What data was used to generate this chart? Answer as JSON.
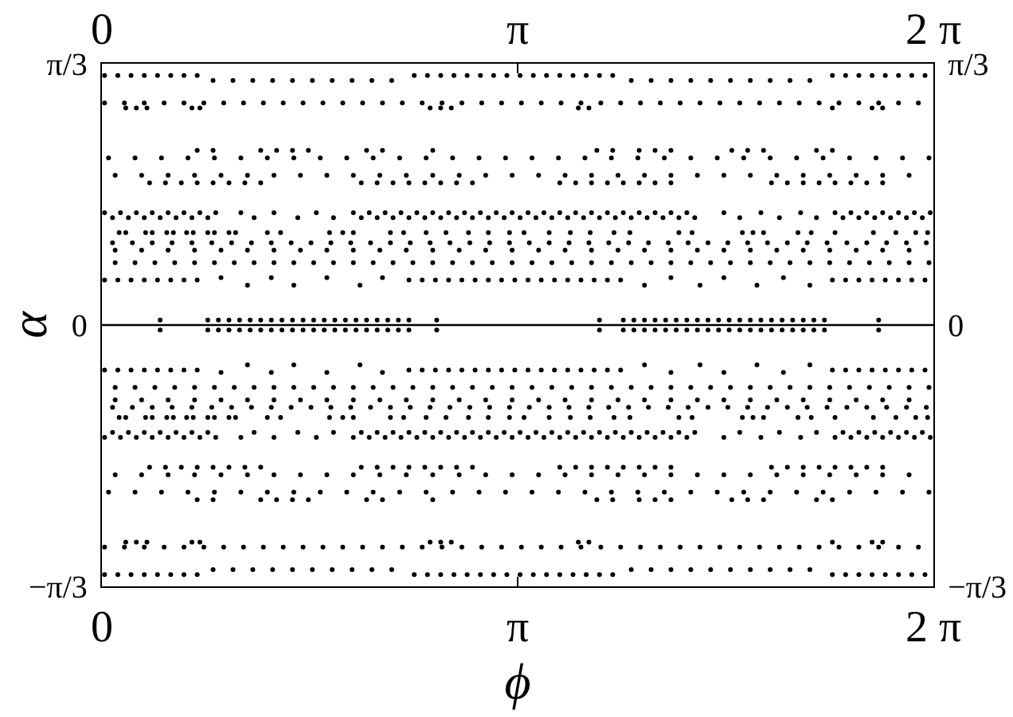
{
  "chart_data": {
    "type": "scatter",
    "xlabel": "ϕ",
    "ylabel": "α",
    "marker": "circle",
    "xlim": [
      0,
      6.2832
    ],
    "xticks": [
      0,
      {
        "value": 3.1416,
        "label": "π"
      },
      {
        "value": 6.2832,
        "label": "2 π"
      }
    ],
    "x2lim": [
      0,
      6.2832
    ],
    "x2ticks": [
      0,
      {
        "value": 3.1416,
        "label": "π"
      },
      {
        "value": 6.2832,
        "label": "2 π"
      }
    ],
    "ylim": [
      -1.0472,
      1.0472
    ],
    "yticks": [
      {
        "value": -1.0472,
        "label": "−π/3"
      },
      0,
      {
        "value": 1.0472,
        "label": "π/3"
      }
    ],
    "y2lim": [
      -1.0472,
      1.0472
    ],
    "y2ticks": [
      {
        "value": -1.0472,
        "label": "−π/3"
      },
      0,
      {
        "value": 1.0472,
        "label": "π/3"
      }
    ],
    "ref_lines": [
      {
        "axis": "y",
        "value": 0,
        "color": "#000000"
      }
    ],
    "series": [
      {
        "color": "#000000",
        "x": [
          0.02,
          0.12,
          0.22,
          0.32,
          0.42,
          0.52,
          0.62,
          0.72,
          2.36,
          2.46,
          2.56,
          2.66,
          2.76,
          2.86,
          2.96,
          3.06,
          3.16,
          3.26,
          3.36,
          3.46,
          3.56,
          3.66,
          3.76,
          3.86,
          5.52,
          5.62,
          5.72,
          5.82,
          5.92,
          6.02,
          6.12,
          6.22,
          0.84,
          0.99,
          1.14,
          1.29,
          1.44,
          1.59,
          1.74,
          1.89,
          2.04,
          2.19,
          4.0,
          4.15,
          4.3,
          4.45,
          4.6,
          4.75,
          4.9,
          5.05,
          5.2,
          5.35,
          0.02,
          0.12,
          0.22,
          0.32,
          0.42,
          0.52,
          0.62,
          0.72,
          2.36,
          2.46,
          2.56,
          2.66,
          2.76,
          2.86,
          2.96,
          3.06,
          3.16,
          3.26,
          3.36,
          3.46,
          3.56,
          3.66,
          3.76,
          3.86,
          5.52,
          5.62,
          5.72,
          5.82,
          5.92,
          6.02,
          6.12,
          6.22,
          0.84,
          0.99,
          1.14,
          1.29,
          1.44,
          1.59,
          1.74,
          1.89,
          2.04,
          2.19,
          4.0,
          4.15,
          4.3,
          4.45,
          4.6,
          4.75,
          4.9,
          5.05,
          5.2,
          5.35
        ],
        "values": [
          1,
          1,
          1,
          1,
          1,
          1,
          1,
          1,
          1,
          1,
          1,
          1,
          1,
          1,
          1,
          1,
          1,
          1,
          1,
          1,
          1,
          1,
          1,
          1,
          1,
          1,
          1,
          1,
          1,
          1,
          1,
          1,
          0.98,
          0.98,
          0.98,
          0.98,
          0.98,
          0.98,
          0.98,
          0.98,
          0.98,
          0.98,
          0.98,
          0.98,
          0.98,
          0.98,
          0.98,
          0.98,
          0.98,
          0.98,
          0.98,
          0.98,
          -1,
          -1,
          -1,
          -1,
          -1,
          -1,
          -1,
          -1,
          -1,
          -1,
          -1,
          -1,
          -1,
          -1,
          -1,
          -1,
          -1,
          -1,
          -1,
          -1,
          -1,
          -1,
          -1,
          -1,
          -1,
          -1,
          -1,
          -1,
          -1,
          -1,
          -1,
          -1,
          -0.98,
          -0.98,
          -0.98,
          -0.98,
          -0.98,
          -0.98,
          -0.98,
          -0.98,
          -0.98,
          -0.98,
          -0.98,
          -0.98,
          -0.98,
          -0.98,
          -0.98,
          -0.98,
          -0.98,
          -0.98,
          -0.98,
          -0.98
        ]
      },
      {
        "color": "#000000",
        "x": [
          0.02,
          0.17,
          0.32,
          0.47,
          0.62,
          0.77,
          0.92,
          1.07,
          1.22,
          1.37,
          1.52,
          1.67,
          1.82,
          1.97,
          2.12,
          2.27,
          2.42,
          2.57,
          2.72,
          2.87,
          3.02,
          3.17,
          3.32,
          3.47,
          3.62,
          3.77,
          3.92,
          4.07,
          4.22,
          4.37,
          4.52,
          4.67,
          4.82,
          4.97,
          5.12,
          5.27,
          5.42,
          5.57,
          5.72,
          5.87,
          6.02,
          6.17,
          0.18,
          0.26,
          0.34,
          0.68,
          0.74,
          2.48,
          2.56,
          2.64,
          3.6,
          3.68,
          5.52,
          5.82,
          5.9,
          0.02,
          0.17,
          0.32,
          0.47,
          0.62,
          0.77,
          0.92,
          1.07,
          1.22,
          1.37,
          1.52,
          1.67,
          1.82,
          1.97,
          2.12,
          2.27,
          2.42,
          2.57,
          2.72,
          2.87,
          3.02,
          3.17,
          3.32,
          3.47,
          3.62,
          3.77,
          3.92,
          4.07,
          4.22,
          4.37,
          4.52,
          4.67,
          4.82,
          4.97,
          5.12,
          5.27,
          5.42,
          5.57,
          5.72,
          5.87,
          6.02,
          6.17,
          0.18,
          0.26,
          0.34,
          0.68,
          0.74,
          2.48,
          2.56,
          2.64,
          3.6,
          3.68,
          5.52,
          5.82,
          5.9
        ],
        "values": [
          0.89,
          0.89,
          0.89,
          0.89,
          0.89,
          0.89,
          0.89,
          0.89,
          0.89,
          0.89,
          0.89,
          0.89,
          0.89,
          0.89,
          0.89,
          0.89,
          0.89,
          0.89,
          0.89,
          0.89,
          0.89,
          0.89,
          0.89,
          0.89,
          0.89,
          0.89,
          0.89,
          0.89,
          0.89,
          0.89,
          0.89,
          0.89,
          0.89,
          0.89,
          0.89,
          0.89,
          0.89,
          0.89,
          0.89,
          0.89,
          0.89,
          0.89,
          0.87,
          0.87,
          0.87,
          0.87,
          0.87,
          0.87,
          0.87,
          0.87,
          0.87,
          0.87,
          0.87,
          0.87,
          0.87,
          -0.89,
          -0.89,
          -0.89,
          -0.89,
          -0.89,
          -0.89,
          -0.89,
          -0.89,
          -0.89,
          -0.89,
          -0.89,
          -0.89,
          -0.89,
          -0.89,
          -0.89,
          -0.89,
          -0.89,
          -0.89,
          -0.89,
          -0.89,
          -0.89,
          -0.89,
          -0.89,
          -0.89,
          -0.89,
          -0.89,
          -0.89,
          -0.89,
          -0.89,
          -0.89,
          -0.89,
          -0.89,
          -0.89,
          -0.89,
          -0.89,
          -0.89,
          -0.89,
          -0.89,
          -0.89,
          -0.89,
          -0.89,
          -0.89,
          -0.87,
          -0.87,
          -0.87,
          -0.87,
          -0.87,
          -0.87,
          -0.87,
          -0.87,
          -0.87,
          -0.87,
          -0.87,
          -0.87,
          -0.87
        ]
      },
      {
        "color": "#000000",
        "x": [
          0.05,
          0.25,
          0.45,
          0.65,
          0.85,
          1.05,
          1.25,
          1.45,
          1.65,
          1.85,
          2.05,
          2.25,
          2.45,
          2.65,
          2.85,
          3.05,
          3.25,
          3.45,
          3.65,
          3.85,
          4.05,
          4.25,
          4.45,
          4.65,
          4.85,
          5.05,
          5.25,
          5.45,
          5.65,
          5.85,
          6.05,
          6.25,
          0.72,
          0.84,
          1.2,
          1.32,
          1.44,
          1.56,
          2.0,
          2.12,
          2.5,
          3.74,
          3.86,
          4.06,
          4.18,
          4.3,
          4.76,
          4.88,
          5.0,
          5.4,
          5.52,
          0.05,
          0.25,
          0.45,
          0.65,
          0.85,
          1.05,
          1.25,
          1.45,
          1.65,
          1.85,
          2.05,
          2.25,
          2.45,
          2.65,
          2.85,
          3.05,
          3.25,
          3.45,
          3.65,
          3.85,
          4.05,
          4.25,
          4.45,
          4.65,
          4.85,
          5.05,
          5.25,
          5.45,
          5.65,
          5.85,
          6.05,
          6.25,
          0.72,
          0.84,
          1.2,
          1.32,
          1.44,
          1.56,
          2.0,
          2.12,
          2.5,
          3.74,
          3.86,
          4.06,
          4.18,
          4.3,
          4.76,
          4.88,
          5.0,
          5.4,
          5.52
        ],
        "values": [
          0.67,
          0.67,
          0.67,
          0.67,
          0.67,
          0.67,
          0.67,
          0.67,
          0.67,
          0.67,
          0.67,
          0.67,
          0.67,
          0.67,
          0.67,
          0.67,
          0.67,
          0.67,
          0.67,
          0.67,
          0.67,
          0.67,
          0.67,
          0.67,
          0.67,
          0.67,
          0.67,
          0.67,
          0.67,
          0.67,
          0.67,
          0.67,
          0.7,
          0.7,
          0.7,
          0.7,
          0.7,
          0.7,
          0.7,
          0.7,
          0.7,
          0.7,
          0.7,
          0.7,
          0.7,
          0.7,
          0.7,
          0.7,
          0.7,
          0.7,
          0.7,
          -0.67,
          -0.67,
          -0.67,
          -0.67,
          -0.67,
          -0.67,
          -0.67,
          -0.67,
          -0.67,
          -0.67,
          -0.67,
          -0.67,
          -0.67,
          -0.67,
          -0.67,
          -0.67,
          -0.67,
          -0.67,
          -0.67,
          -0.67,
          -0.67,
          -0.67,
          -0.67,
          -0.67,
          -0.67,
          -0.67,
          -0.67,
          -0.67,
          -0.67,
          -0.67,
          -0.67,
          -0.67,
          -0.7,
          -0.7,
          -0.7,
          -0.7,
          -0.7,
          -0.7,
          -0.7,
          -0.7,
          -0.7,
          -0.7,
          -0.7,
          -0.7,
          -0.7,
          -0.7,
          -0.7,
          -0.7,
          -0.7,
          -0.7,
          -0.7
        ]
      },
      {
        "color": "#000000",
        "x": [
          0.1,
          0.3,
          0.5,
          0.7,
          0.9,
          1.1,
          1.3,
          1.5,
          1.7,
          1.9,
          2.1,
          2.3,
          2.5,
          2.7,
          2.9,
          3.1,
          3.3,
          3.5,
          3.7,
          3.9,
          4.1,
          4.3,
          4.5,
          4.7,
          4.9,
          5.1,
          5.3,
          5.5,
          5.7,
          5.9,
          6.1,
          0.36,
          0.48,
          0.6,
          0.72,
          0.84,
          0.96,
          1.08,
          1.2,
          1.96,
          2.08,
          2.2,
          2.32,
          2.44,
          2.56,
          2.68,
          2.8,
          3.46,
          3.58,
          3.7,
          3.82,
          3.94,
          4.06,
          4.18,
          4.3,
          5.06,
          5.18,
          5.3,
          5.42,
          5.54,
          5.66,
          5.78,
          5.9,
          0.1,
          0.3,
          0.5,
          0.7,
          0.9,
          1.1,
          1.3,
          1.5,
          1.7,
          1.9,
          2.1,
          2.3,
          2.5,
          2.7,
          2.9,
          3.1,
          3.3,
          3.5,
          3.7,
          3.9,
          4.1,
          4.3,
          4.5,
          4.7,
          4.9,
          5.1,
          5.3,
          5.5,
          5.7,
          5.9,
          6.1,
          0.36,
          0.48,
          0.6,
          0.72,
          0.84,
          0.96,
          1.08,
          1.2,
          1.96,
          2.08,
          2.2,
          2.32,
          2.44,
          2.56,
          2.68,
          2.8,
          3.46,
          3.58,
          3.7,
          3.82,
          3.94,
          4.06,
          4.18,
          4.3,
          5.06,
          5.18,
          5.3,
          5.42,
          5.54,
          5.66,
          5.78,
          5.9
        ],
        "values": [
          0.6,
          0.6,
          0.6,
          0.6,
          0.6,
          0.6,
          0.6,
          0.6,
          0.6,
          0.6,
          0.6,
          0.6,
          0.6,
          0.6,
          0.6,
          0.6,
          0.6,
          0.6,
          0.6,
          0.6,
          0.6,
          0.6,
          0.6,
          0.6,
          0.6,
          0.6,
          0.6,
          0.6,
          0.6,
          0.6,
          0.6,
          0.57,
          0.57,
          0.57,
          0.57,
          0.57,
          0.57,
          0.57,
          0.57,
          0.57,
          0.57,
          0.57,
          0.57,
          0.57,
          0.57,
          0.57,
          0.57,
          0.57,
          0.57,
          0.57,
          0.57,
          0.57,
          0.57,
          0.57,
          0.57,
          0.57,
          0.57,
          0.57,
          0.57,
          0.57,
          0.57,
          0.57,
          0.57,
          -0.6,
          -0.6,
          -0.6,
          -0.6,
          -0.6,
          -0.6,
          -0.6,
          -0.6,
          -0.6,
          -0.6,
          -0.6,
          -0.6,
          -0.6,
          -0.6,
          -0.6,
          -0.6,
          -0.6,
          -0.6,
          -0.6,
          -0.6,
          -0.6,
          -0.6,
          -0.6,
          -0.6,
          -0.6,
          -0.6,
          -0.6,
          -0.6,
          -0.6,
          -0.6,
          -0.6,
          -0.57,
          -0.57,
          -0.57,
          -0.57,
          -0.57,
          -0.57,
          -0.57,
          -0.57,
          -0.57,
          -0.57,
          -0.57,
          -0.57,
          -0.57,
          -0.57,
          -0.57,
          -0.57,
          -0.57,
          -0.57,
          -0.57,
          -0.57,
          -0.57,
          -0.57,
          -0.57,
          -0.57,
          -0.57,
          -0.57,
          -0.57,
          -0.57,
          -0.57,
          -0.57,
          -0.57,
          -0.57
        ]
      },
      {
        "color": "#000000",
        "x": [
          0.02,
          0.14,
          0.26,
          0.38,
          0.5,
          0.62,
          0.74,
          0.86,
          1.05,
          1.3,
          1.62,
          1.9,
          2.02,
          2.14,
          2.26,
          2.38,
          2.5,
          2.62,
          2.74,
          2.86,
          2.98,
          3.1,
          3.22,
          3.34,
          3.46,
          3.58,
          3.7,
          3.82,
          3.94,
          4.06,
          4.18,
          4.3,
          4.42,
          4.7,
          4.98,
          5.28,
          5.54,
          5.66,
          5.78,
          5.9,
          6.02,
          6.14,
          6.26,
          0.02,
          0.14,
          0.26,
          0.38,
          0.5,
          0.62,
          0.74,
          0.86,
          1.05,
          1.3,
          1.62,
          1.9,
          2.02,
          2.14,
          2.26,
          2.38,
          2.5,
          2.62,
          2.74,
          2.86,
          2.98,
          3.1,
          3.22,
          3.34,
          3.46,
          3.58,
          3.7,
          3.82,
          3.94,
          4.06,
          4.18,
          4.3,
          4.42,
          4.7,
          4.98,
          5.28,
          5.54,
          5.66,
          5.78,
          5.9,
          6.02,
          6.14,
          6.26
        ],
        "values": [
          0.45,
          0.45,
          0.45,
          0.45,
          0.45,
          0.45,
          0.45,
          0.45,
          0.45,
          0.45,
          0.45,
          0.45,
          0.45,
          0.45,
          0.45,
          0.45,
          0.45,
          0.45,
          0.45,
          0.45,
          0.45,
          0.45,
          0.45,
          0.45,
          0.45,
          0.45,
          0.45,
          0.45,
          0.45,
          0.45,
          0.45,
          0.45,
          0.45,
          0.45,
          0.45,
          0.45,
          0.45,
          0.45,
          0.45,
          0.45,
          0.45,
          0.45,
          0.45,
          -0.45,
          -0.45,
          -0.45,
          -0.45,
          -0.45,
          -0.45,
          -0.45,
          -0.45,
          -0.45,
          -0.45,
          -0.45,
          -0.45,
          -0.45,
          -0.45,
          -0.45,
          -0.45,
          -0.45,
          -0.45,
          -0.45,
          -0.45,
          -0.45,
          -0.45,
          -0.45,
          -0.45,
          -0.45,
          -0.45,
          -0.45,
          -0.45,
          -0.45,
          -0.45,
          -0.45,
          -0.45,
          -0.45,
          -0.45,
          -0.45,
          -0.45,
          -0.45,
          -0.45,
          -0.45,
          -0.45,
          -0.45,
          -0.45,
          -0.45
        ]
      },
      {
        "color": "#000000",
        "x": [
          0.08,
          0.2,
          0.32,
          0.44,
          0.56,
          0.68,
          0.8,
          1.15,
          1.48,
          1.75,
          1.96,
          2.08,
          2.2,
          2.32,
          2.44,
          2.56,
          2.68,
          2.8,
          2.92,
          3.04,
          3.16,
          3.28,
          3.4,
          3.52,
          3.64,
          3.76,
          3.88,
          4.0,
          4.12,
          4.24,
          4.36,
          4.48,
          4.82,
          5.12,
          5.4,
          5.6,
          5.72,
          5.84,
          5.96,
          6.08,
          6.2,
          0.08,
          0.2,
          0.32,
          0.44,
          0.56,
          0.68,
          0.8,
          1.15,
          1.48,
          1.75,
          1.96,
          2.08,
          2.2,
          2.32,
          2.44,
          2.56,
          2.68,
          2.8,
          2.92,
          3.04,
          3.16,
          3.28,
          3.4,
          3.52,
          3.64,
          3.76,
          3.88,
          4.0,
          4.12,
          4.24,
          4.36,
          4.48,
          4.82,
          5.12,
          5.4,
          5.6,
          5.72,
          5.84,
          5.96,
          6.08,
          6.2
        ],
        "values": [
          0.43,
          0.43,
          0.43,
          0.43,
          0.43,
          0.43,
          0.43,
          0.43,
          0.43,
          0.43,
          0.43,
          0.43,
          0.43,
          0.43,
          0.43,
          0.43,
          0.43,
          0.43,
          0.43,
          0.43,
          0.43,
          0.43,
          0.43,
          0.43,
          0.43,
          0.43,
          0.43,
          0.43,
          0.43,
          0.43,
          0.43,
          0.43,
          0.43,
          0.43,
          0.43,
          0.43,
          0.43,
          0.43,
          0.43,
          0.43,
          0.43,
          -0.43,
          -0.43,
          -0.43,
          -0.43,
          -0.43,
          -0.43,
          -0.43,
          -0.43,
          -0.43,
          -0.43,
          -0.43,
          -0.43,
          -0.43,
          -0.43,
          -0.43,
          -0.43,
          -0.43,
          -0.43,
          -0.43,
          -0.43,
          -0.43,
          -0.43,
          -0.43,
          -0.43,
          -0.43,
          -0.43,
          -0.43,
          -0.43,
          -0.43,
          -0.43,
          -0.43,
          -0.43,
          -0.43,
          -0.43,
          -0.43,
          -0.43,
          -0.43,
          -0.43,
          -0.43,
          -0.43,
          -0.43
        ]
      },
      {
        "color": "#000000",
        "x": [
          0.13,
          0.18,
          0.33,
          0.38,
          0.49,
          0.54,
          0.64,
          0.69,
          0.8,
          0.85,
          0.96,
          1.01,
          1.25,
          1.35,
          1.72,
          1.82,
          1.9,
          2.18,
          2.28,
          2.45,
          2.6,
          2.77,
          2.92,
          3.08,
          3.19,
          3.38,
          3.54,
          3.69,
          3.87,
          3.99,
          4.36,
          4.46,
          4.84,
          4.92,
          5.0,
          5.26,
          5.36,
          5.54,
          5.83,
          6.0,
          6.15,
          6.24,
          0.13,
          0.18,
          0.33,
          0.38,
          0.49,
          0.54,
          0.64,
          0.69,
          0.8,
          0.85,
          0.96,
          1.01,
          1.25,
          1.35,
          1.72,
          1.82,
          1.9,
          2.18,
          2.28,
          2.45,
          2.6,
          2.77,
          2.92,
          3.08,
          3.19,
          3.38,
          3.54,
          3.69,
          3.87,
          3.99,
          4.36,
          4.46,
          4.84,
          4.92,
          5.0,
          5.26,
          5.36,
          5.54,
          5.83,
          6.0,
          6.15,
          6.24
        ],
        "values": [
          0.37,
          0.37,
          0.37,
          0.37,
          0.37,
          0.37,
          0.37,
          0.37,
          0.37,
          0.37,
          0.37,
          0.37,
          0.37,
          0.37,
          0.37,
          0.37,
          0.37,
          0.37,
          0.37,
          0.37,
          0.37,
          0.37,
          0.37,
          0.37,
          0.37,
          0.37,
          0.37,
          0.37,
          0.37,
          0.37,
          0.37,
          0.37,
          0.37,
          0.37,
          0.37,
          0.37,
          0.37,
          0.37,
          0.37,
          0.37,
          0.37,
          0.37,
          -0.37,
          -0.37,
          -0.37,
          -0.37,
          -0.37,
          -0.37,
          -0.37,
          -0.37,
          -0.37,
          -0.37,
          -0.37,
          -0.37,
          -0.37,
          -0.37,
          -0.37,
          -0.37,
          -0.37,
          -0.37,
          -0.37,
          -0.37,
          -0.37,
          -0.37,
          -0.37,
          -0.37,
          -0.37,
          -0.37,
          -0.37,
          -0.37,
          -0.37,
          -0.37,
          -0.37,
          -0.37,
          -0.37,
          -0.37,
          -0.37,
          -0.37,
          -0.37,
          -0.37,
          -0.37,
          -0.37,
          -0.37,
          -0.37
        ]
      },
      {
        "color": "#000000",
        "x": [
          0.08,
          0.23,
          0.38,
          0.53,
          0.68,
          0.83,
          0.98,
          1.13,
          1.28,
          1.43,
          1.58,
          1.73,
          1.88,
          2.03,
          2.18,
          2.33,
          2.48,
          2.63,
          2.78,
          2.93,
          3.08,
          3.23,
          3.38,
          3.53,
          3.68,
          3.83,
          3.98,
          4.13,
          4.28,
          4.43,
          4.58,
          4.73,
          4.88,
          5.03,
          5.18,
          5.33,
          5.48,
          5.63,
          5.78,
          5.93,
          6.08,
          6.23,
          0.1,
          0.3,
          0.5,
          0.7,
          0.9,
          1.1,
          1.3,
          1.5,
          1.7,
          1.9,
          2.1,
          2.3,
          2.5,
          2.7,
          2.9,
          3.1,
          3.3,
          3.5,
          3.7,
          3.9,
          4.1,
          4.3,
          4.5,
          4.7,
          4.9,
          5.1,
          5.3,
          5.5,
          5.7,
          5.9,
          6.1,
          0.08,
          0.23,
          0.38,
          0.53,
          0.68,
          0.83,
          0.98,
          1.13,
          1.28,
          1.43,
          1.58,
          1.73,
          1.88,
          2.03,
          2.18,
          2.33,
          2.48,
          2.63,
          2.78,
          2.93,
          3.08,
          3.23,
          3.38,
          3.53,
          3.68,
          3.83,
          3.98,
          4.13,
          4.28,
          4.43,
          4.58,
          4.73,
          4.88,
          5.03,
          5.18,
          5.33,
          5.48,
          5.63,
          5.78,
          5.93,
          6.08,
          6.23,
          0.1,
          0.3,
          0.5,
          0.7,
          0.9,
          1.1,
          1.3,
          1.5,
          1.7,
          1.9,
          2.1,
          2.3,
          2.5,
          2.7,
          2.9,
          3.1,
          3.3,
          3.5,
          3.7,
          3.9,
          4.1,
          4.3,
          4.5,
          4.7,
          4.9,
          5.1,
          5.3,
          5.5,
          5.7,
          5.9,
          6.1
        ],
        "values": [
          0.33,
          0.33,
          0.33,
          0.33,
          0.33,
          0.33,
          0.33,
          0.33,
          0.33,
          0.33,
          0.33,
          0.33,
          0.33,
          0.33,
          0.33,
          0.33,
          0.33,
          0.33,
          0.33,
          0.33,
          0.33,
          0.33,
          0.33,
          0.33,
          0.33,
          0.33,
          0.33,
          0.33,
          0.33,
          0.33,
          0.33,
          0.33,
          0.33,
          0.33,
          0.33,
          0.33,
          0.33,
          0.33,
          0.33,
          0.33,
          0.33,
          0.33,
          0.3,
          0.3,
          0.3,
          0.3,
          0.3,
          0.3,
          0.3,
          0.3,
          0.3,
          0.3,
          0.3,
          0.3,
          0.3,
          0.3,
          0.3,
          0.3,
          0.3,
          0.3,
          0.3,
          0.3,
          0.3,
          0.3,
          0.3,
          0.3,
          0.3,
          0.3,
          0.3,
          0.3,
          0.3,
          0.3,
          0.3,
          -0.33,
          -0.33,
          -0.33,
          -0.33,
          -0.33,
          -0.33,
          -0.33,
          -0.33,
          -0.33,
          -0.33,
          -0.33,
          -0.33,
          -0.33,
          -0.33,
          -0.33,
          -0.33,
          -0.33,
          -0.33,
          -0.33,
          -0.33,
          -0.33,
          -0.33,
          -0.33,
          -0.33,
          -0.33,
          -0.33,
          -0.33,
          -0.33,
          -0.33,
          -0.33,
          -0.33,
          -0.33,
          -0.33,
          -0.33,
          -0.33,
          -0.33,
          -0.33,
          -0.33,
          -0.33,
          -0.33,
          -0.33,
          -0.33,
          -0.3,
          -0.3,
          -0.3,
          -0.3,
          -0.3,
          -0.3,
          -0.3,
          -0.3,
          -0.3,
          -0.3,
          -0.3,
          -0.3,
          -0.3,
          -0.3,
          -0.3,
          -0.3,
          -0.3,
          -0.3,
          -0.3,
          -0.3,
          -0.3,
          -0.3,
          -0.3,
          -0.3,
          -0.3,
          -0.3,
          -0.3,
          -0.3,
          -0.3,
          -0.3,
          -0.3
        ]
      },
      {
        "color": "#000000",
        "x": [
          0.1,
          0.25,
          0.4,
          0.55,
          0.7,
          0.85,
          1.0,
          1.15,
          1.3,
          1.45,
          1.6,
          1.75,
          1.9,
          2.05,
          2.2,
          2.35,
          2.5,
          2.65,
          2.8,
          2.95,
          3.1,
          3.25,
          3.4,
          3.55,
          3.7,
          3.85,
          4.0,
          4.15,
          4.3,
          4.45,
          4.6,
          4.75,
          4.9,
          5.05,
          5.2,
          5.35,
          5.5,
          5.65,
          5.8,
          5.95,
          6.1,
          6.25,
          0.1,
          0.25,
          0.4,
          0.55,
          0.7,
          0.85,
          1.0,
          1.15,
          1.3,
          1.45,
          1.6,
          1.75,
          1.9,
          2.05,
          2.2,
          2.35,
          2.5,
          2.65,
          2.8,
          2.95,
          3.1,
          3.25,
          3.4,
          3.55,
          3.7,
          3.85,
          4.0,
          4.15,
          4.3,
          4.45,
          4.6,
          4.75,
          4.9,
          5.05,
          5.2,
          5.35,
          5.5,
          5.65,
          5.8,
          5.95,
          6.1,
          6.25
        ],
        "values": [
          0.25,
          0.25,
          0.25,
          0.25,
          0.25,
          0.25,
          0.25,
          0.25,
          0.25,
          0.25,
          0.25,
          0.25,
          0.25,
          0.25,
          0.25,
          0.25,
          0.25,
          0.25,
          0.25,
          0.25,
          0.25,
          0.25,
          0.25,
          0.25,
          0.25,
          0.25,
          0.25,
          0.25,
          0.25,
          0.25,
          0.25,
          0.25,
          0.25,
          0.25,
          0.25,
          0.25,
          0.25,
          0.25,
          0.25,
          0.25,
          0.25,
          0.25,
          -0.25,
          -0.25,
          -0.25,
          -0.25,
          -0.25,
          -0.25,
          -0.25,
          -0.25,
          -0.25,
          -0.25,
          -0.25,
          -0.25,
          -0.25,
          -0.25,
          -0.25,
          -0.25,
          -0.25,
          -0.25,
          -0.25,
          -0.25,
          -0.25,
          -0.25,
          -0.25,
          -0.25,
          -0.25,
          -0.25,
          -0.25,
          -0.25,
          -0.25,
          -0.25,
          -0.25,
          -0.25,
          -0.25,
          -0.25,
          -0.25,
          -0.25,
          -0.25,
          -0.25,
          -0.25,
          -0.25,
          -0.25,
          -0.25
        ]
      },
      {
        "color": "#000000",
        "x": [
          0.02,
          0.12,
          0.22,
          0.32,
          0.42,
          0.52,
          0.62,
          0.72,
          2.32,
          2.42,
          2.52,
          2.62,
          2.72,
          2.82,
          2.92,
          3.02,
          3.12,
          3.22,
          3.32,
          3.42,
          3.52,
          3.62,
          3.72,
          3.82,
          3.92,
          5.52,
          5.62,
          5.72,
          5.82,
          5.92,
          6.02,
          6.12,
          6.22,
          0.9,
          1.1,
          1.28,
          1.45,
          1.7,
          1.95,
          2.12,
          4.1,
          4.3,
          4.52,
          4.7,
          4.95,
          5.15,
          5.35,
          0.02,
          0.12,
          0.22,
          0.32,
          0.42,
          0.52,
          0.62,
          0.72,
          2.32,
          2.42,
          2.52,
          2.62,
          2.72,
          2.82,
          2.92,
          3.02,
          3.12,
          3.22,
          3.32,
          3.42,
          3.52,
          3.62,
          3.72,
          3.82,
          3.92,
          5.52,
          5.62,
          5.72,
          5.82,
          5.92,
          6.02,
          6.12,
          6.22,
          0.9,
          1.1,
          1.28,
          1.45,
          1.7,
          1.95,
          2.12,
          4.1,
          4.3,
          4.52,
          4.7,
          4.95,
          5.15,
          5.35
        ],
        "values": [
          0.18,
          0.18,
          0.18,
          0.18,
          0.18,
          0.18,
          0.18,
          0.18,
          0.18,
          0.18,
          0.18,
          0.18,
          0.18,
          0.18,
          0.18,
          0.18,
          0.18,
          0.18,
          0.18,
          0.18,
          0.18,
          0.18,
          0.18,
          0.18,
          0.18,
          0.18,
          0.18,
          0.18,
          0.18,
          0.18,
          0.18,
          0.18,
          0.18,
          0.19,
          0.16,
          0.19,
          0.16,
          0.19,
          0.16,
          0.19,
          0.16,
          0.19,
          0.16,
          0.19,
          0.16,
          0.19,
          0.16,
          -0.18,
          -0.18,
          -0.18,
          -0.18,
          -0.18,
          -0.18,
          -0.18,
          -0.18,
          -0.18,
          -0.18,
          -0.18,
          -0.18,
          -0.18,
          -0.18,
          -0.18,
          -0.18,
          -0.18,
          -0.18,
          -0.18,
          -0.18,
          -0.18,
          -0.18,
          -0.18,
          -0.18,
          -0.18,
          -0.18,
          -0.18,
          -0.18,
          -0.18,
          -0.18,
          -0.18,
          -0.18,
          -0.18,
          -0.19,
          -0.16,
          -0.19,
          -0.16,
          -0.19,
          -0.16,
          -0.19,
          -0.16,
          -0.19,
          -0.16,
          -0.19,
          -0.16,
          -0.19,
          -0.16
        ]
      },
      {
        "color": "#000000",
        "x": [
          0.8,
          0.88,
          0.96,
          1.04,
          1.12,
          1.2,
          1.28,
          1.36,
          1.44,
          1.52,
          1.6,
          1.68,
          1.76,
          1.84,
          1.92,
          2.0,
          2.08,
          2.16,
          2.24,
          2.32,
          3.94,
          4.02,
          4.1,
          4.18,
          4.26,
          4.34,
          4.42,
          4.5,
          4.58,
          4.66,
          4.74,
          4.82,
          4.9,
          4.98,
          5.06,
          5.14,
          5.22,
          5.3,
          5.38,
          5.46,
          0.44,
          2.53,
          3.76,
          5.87,
          0.8,
          0.88,
          0.96,
          1.04,
          1.12,
          1.2,
          1.28,
          1.36,
          1.44,
          1.52,
          1.6,
          1.68,
          1.76,
          1.84,
          1.92,
          2.0,
          2.08,
          2.16,
          2.24,
          2.32,
          3.94,
          4.02,
          4.1,
          4.18,
          4.26,
          4.34,
          4.42,
          4.5,
          4.58,
          4.66,
          4.74,
          4.82,
          4.9,
          4.98,
          5.06,
          5.14,
          5.22,
          5.3,
          5.38,
          5.46,
          0.44,
          2.53,
          3.76,
          5.87
        ],
        "values": [
          0.02,
          0.02,
          0.02,
          0.02,
          0.02,
          0.02,
          0.02,
          0.02,
          0.02,
          0.02,
          0.02,
          0.02,
          0.02,
          0.02,
          0.02,
          0.02,
          0.02,
          0.02,
          0.02,
          0.02,
          0.02,
          0.02,
          0.02,
          0.02,
          0.02,
          0.02,
          0.02,
          0.02,
          0.02,
          0.02,
          0.02,
          0.02,
          0.02,
          0.02,
          0.02,
          0.02,
          0.02,
          0.02,
          0.02,
          0.02,
          0.02,
          0.02,
          0.02,
          0.02,
          -0.02,
          -0.02,
          -0.02,
          -0.02,
          -0.02,
          -0.02,
          -0.02,
          -0.02,
          -0.02,
          -0.02,
          -0.02,
          -0.02,
          -0.02,
          -0.02,
          -0.02,
          -0.02,
          -0.02,
          -0.02,
          -0.02,
          -0.02,
          -0.02,
          -0.02,
          -0.02,
          -0.02,
          -0.02,
          -0.02,
          -0.02,
          -0.02,
          -0.02,
          -0.02,
          -0.02,
          -0.02,
          -0.02,
          -0.02,
          -0.02,
          -0.02,
          -0.02,
          -0.02,
          -0.02,
          -0.02,
          -0.02,
          -0.02,
          -0.02,
          -0.02
        ]
      }
    ]
  }
}
